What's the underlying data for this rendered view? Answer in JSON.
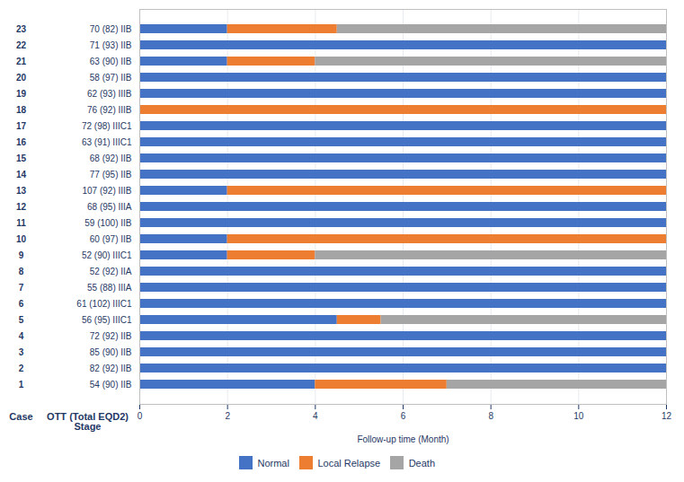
{
  "chart_data": {
    "type": "bar",
    "orientation": "horizontal",
    "stacked": true,
    "xlabel": "Follow-up time (Month)",
    "categories": [
      "54 (90) IIB",
      "82 (92) IIB",
      "85 (90) IIB",
      "72 (92) IIB",
      "56 (95) IIIC1",
      "61 (102) IIIC1",
      "55 (88) IIIA",
      "52 (92) IIA",
      "52 (90) IIIC1",
      "60 (97) IIB",
      "59 (100) IIB",
      "68 (95) IIIA",
      "107 (92) IIIB",
      "77 (95) IIB",
      "68 (92) IIB",
      "63 (91) IIIC1",
      "72 (98) IIIC1",
      "76 (92) IIIB",
      "62 (93) IIIB",
      "58 (97) IIB",
      "63 (90) IIB",
      "71 (93) IIB",
      "70 (82) IIB"
    ],
    "case_ids": [
      1,
      2,
      3,
      4,
      5,
      6,
      7,
      8,
      9,
      10,
      11,
      12,
      13,
      14,
      15,
      16,
      17,
      18,
      19,
      20,
      21,
      22,
      23
    ],
    "annotations": [
      "Case",
      "OTT (Total EQD2)\nStage"
    ],
    "series": [
      {
        "name": "Normal",
        "color": "#4472C4",
        "values": [
          4.0,
          12,
          12,
          12,
          4.5,
          12,
          12,
          12,
          2.0,
          2.0,
          12,
          12,
          2.0,
          12,
          12,
          12,
          12,
          0,
          12,
          12,
          2.0,
          12,
          2.0
        ]
      },
      {
        "name": "Local Relapse",
        "color": "#ED7D31",
        "values": [
          3.0,
          0,
          0,
          0,
          1.0,
          0,
          0,
          0,
          2.0,
          10.0,
          0,
          0,
          10.0,
          0,
          0,
          0,
          0,
          12,
          0,
          0,
          2.0,
          0,
          2.5
        ]
      },
      {
        "name": "Death",
        "color": "#A5A5A5",
        "values": [
          5.0,
          0,
          0,
          0,
          6.5,
          0,
          0,
          0,
          8.0,
          0,
          0,
          0,
          0,
          0,
          0,
          0,
          0,
          0,
          0,
          0,
          8.0,
          0,
          7.5
        ]
      }
    ],
    "xlim": [
      0,
      12
    ],
    "xticks": [
      0,
      2,
      4,
      6,
      8,
      10,
      12
    ],
    "grid": true,
    "legend": "bottom"
  }
}
